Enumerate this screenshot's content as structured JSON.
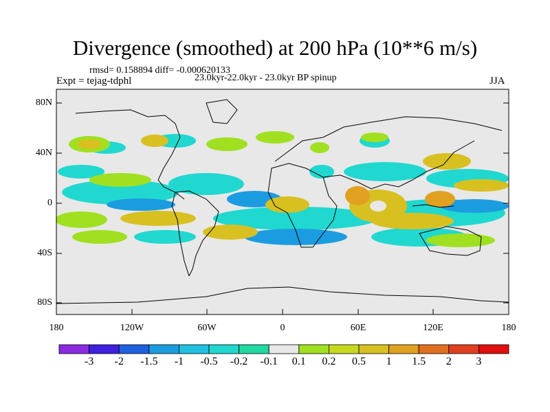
{
  "title": "Divergence (smoothed) at 200 hPa (10**6 m/s)",
  "stats": "rmsd= 0.158894 diff= -0.000620133",
  "experiment": "Expt = tejag-tdphl",
  "period": "23.0kyr-22.0kyr - 23.0kyr BP spinup",
  "season": "JJA",
  "map": {
    "lon_range": [
      -180,
      180
    ],
    "lat_range": [
      -90,
      90
    ],
    "lat_tick_labels": [
      "80N",
      "40N",
      "0",
      "40S",
      "80S"
    ],
    "lon_tick_labels": [
      "180",
      "120W",
      "60W",
      "0",
      "60E",
      "120E",
      "180"
    ]
  },
  "colorbar": {
    "colors": [
      "#8a2be2",
      "#4020e0",
      "#1e60e0",
      "#1c9ce0",
      "#20c0e0",
      "#20d8d0",
      "#20d8a0",
      "#e8e8e8",
      "#a0e020",
      "#c8d820",
      "#d8c020",
      "#e0a020",
      "#e07020",
      "#e04020",
      "#e01010"
    ],
    "labels": [
      "-3",
      "-2",
      "-1.5",
      "-1",
      "-0.5",
      "-0.2",
      "-0.1",
      "0.1",
      "0.2",
      "0.5",
      "1",
      "1.5",
      "2",
      "3"
    ]
  },
  "field_colors": {
    "neg_weak": "#20d8d0",
    "neg_strong": "#1c9ce0",
    "pos_weak": "#a0e020",
    "pos_strong": "#d8c020",
    "ocean": "#e8e8e8"
  }
}
